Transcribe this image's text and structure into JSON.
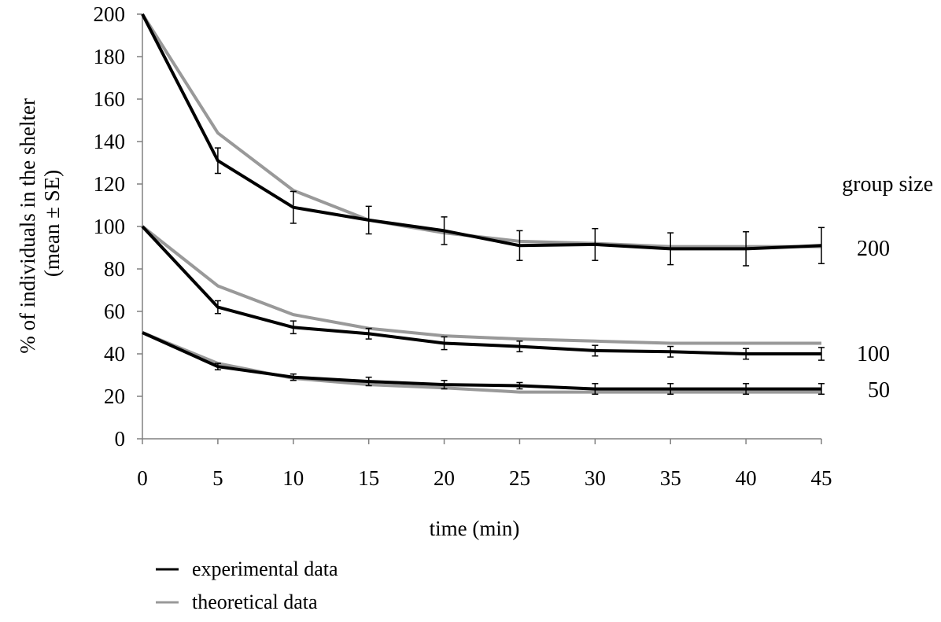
{
  "chart_data": {
    "type": "line",
    "xlabel": "time (min)",
    "ylabel": [
      "% of individuals in the shelter",
      "(mean ± SE)"
    ],
    "x": [
      0,
      5,
      10,
      15,
      20,
      25,
      30,
      35,
      40,
      45
    ],
    "xlim": [
      0,
      45
    ],
    "ylim": [
      0,
      200
    ],
    "xticks": [
      0,
      5,
      10,
      15,
      20,
      25,
      30,
      35,
      40,
      45
    ],
    "yticks": [
      0,
      20,
      40,
      60,
      80,
      100,
      120,
      140,
      160,
      180,
      200
    ],
    "grid": false,
    "legend_position": "bottom-left",
    "group_size_title": "group size",
    "groups": [
      {
        "label": "200",
        "experimental": [
          200,
          131,
          109,
          103,
          98,
          91,
          91.5,
          89.5,
          89.5,
          91
        ],
        "error": [
          0,
          6,
          7.5,
          6.5,
          6.5,
          7,
          7.5,
          7.5,
          8,
          8.5
        ],
        "theoretical": [
          200,
          144,
          117,
          103,
          97,
          93,
          92,
          90.5,
          90.5,
          90.5
        ]
      },
      {
        "label": "100",
        "experimental": [
          100,
          62,
          52.5,
          49.5,
          45,
          43.5,
          41.5,
          41,
          40,
          40
        ],
        "error": [
          0,
          3,
          3,
          2.5,
          3,
          2.5,
          2.5,
          2.5,
          2.5,
          3
        ],
        "theoretical": [
          100,
          72,
          58.5,
          52,
          48.5,
          47,
          46,
          45,
          45,
          45
        ]
      },
      {
        "label": "50",
        "experimental": [
          50,
          34,
          29,
          27,
          25.5,
          25,
          23.5,
          23.5,
          23.5,
          23.5
        ],
        "error": [
          0,
          1.5,
          1.5,
          2,
          2,
          1.5,
          2.5,
          2.5,
          2.5,
          2.5
        ],
        "theoretical": [
          50,
          35.5,
          28.5,
          25.5,
          24,
          22,
          22,
          22,
          22,
          22
        ]
      }
    ],
    "series_styles": [
      {
        "name": "experimental data",
        "color": "#000000"
      },
      {
        "name": "theoretical data",
        "color": "#999999"
      }
    ]
  }
}
